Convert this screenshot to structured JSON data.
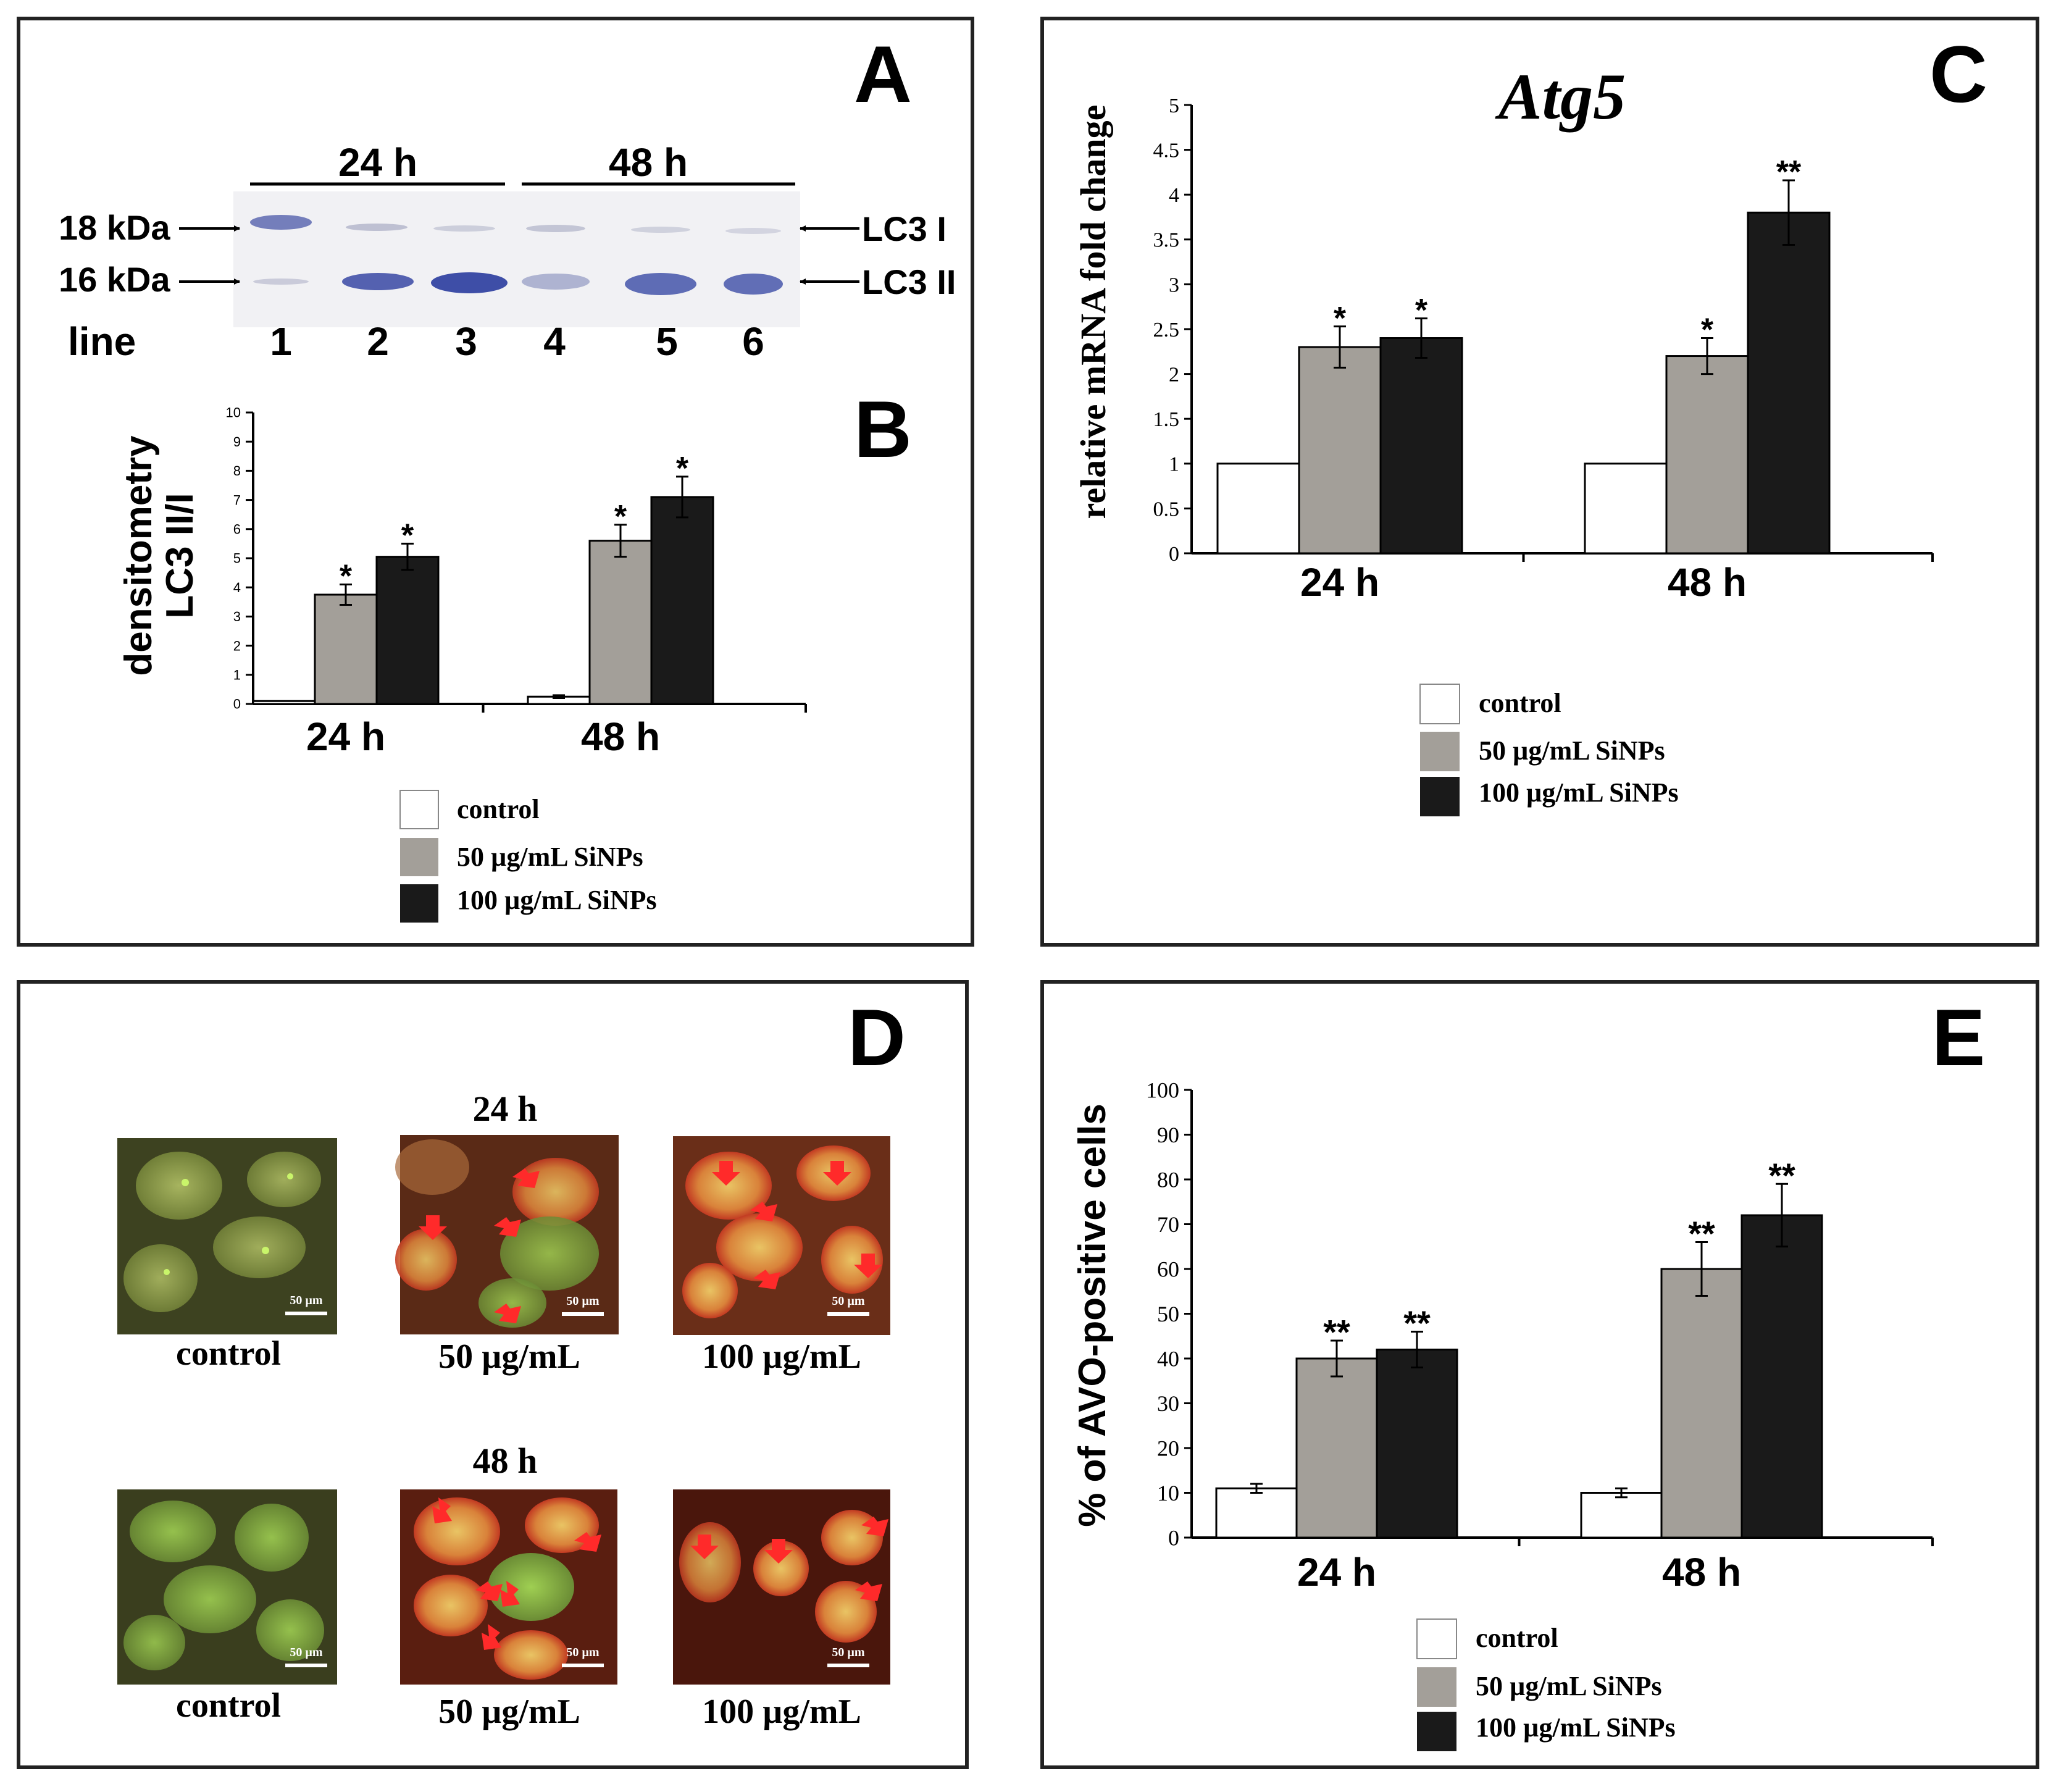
{
  "panels": {
    "A": {
      "letter": "A",
      "header_left": "24 h",
      "header_right": "48 h",
      "marker_18": "18 kDa",
      "marker_16": "16 kDa",
      "band_lc3i": "LC3 I",
      "band_lc3ii": "LC3 II",
      "lane_label": "line",
      "lanes": [
        "1",
        "2",
        "3",
        "4",
        "5",
        "6"
      ]
    },
    "B": {
      "letter": "B",
      "ylabel_line1": "densitometry",
      "ylabel_line2": "LC3 II/I"
    },
    "C": {
      "letter": "C",
      "title": "Atg5",
      "ylabel": "relative mRNA fold change"
    },
    "D": {
      "letter": "D",
      "row1_time": "24 h",
      "row2_time": "48 h",
      "captions": [
        "control",
        "50 µg/mL",
        "100 µg/mL"
      ],
      "scale_bar": "50 µm"
    },
    "E": {
      "letter": "E",
      "ylabel": "% of AVO-positive cells"
    }
  },
  "legend": [
    "control",
    "50 µg/mL SiNPs",
    "100 µg/mL SiNPs"
  ],
  "colors": {
    "control": "#ffffff",
    "low": "#a39f99",
    "high": "#1a1a1a",
    "blot_band": "#3f4fa8"
  },
  "chart_data": [
    {
      "id": "B",
      "type": "bar",
      "categories": [
        "24 h",
        "48 h"
      ],
      "series": [
        {
          "name": "control",
          "values": [
            0.1,
            0.25
          ],
          "errors": [
            0,
            0.05
          ],
          "sig": [
            "",
            ""
          ]
        },
        {
          "name": "50 µg/mL SiNPs",
          "values": [
            3.75,
            5.6
          ],
          "errors": [
            0.35,
            0.55
          ],
          "sig": [
            "*",
            "*"
          ]
        },
        {
          "name": "100 µg/mL SiNPs",
          "values": [
            5.05,
            7.1
          ],
          "errors": [
            0.45,
            0.7
          ],
          "sig": [
            "*",
            "*"
          ]
        }
      ],
      "yticks": [
        "0",
        "1",
        "2",
        "3",
        "4",
        "5",
        "6",
        "7",
        "8",
        "9",
        "10"
      ],
      "ylim": [
        0,
        10
      ],
      "ylabel": "densitometry LC3 II/I"
    },
    {
      "id": "C",
      "type": "bar",
      "categories": [
        "24 h",
        "48 h"
      ],
      "series": [
        {
          "name": "control",
          "values": [
            1,
            1
          ],
          "errors": [
            0,
            0
          ],
          "sig": [
            "",
            ""
          ]
        },
        {
          "name": "50 µg/mL SiNPs",
          "values": [
            2.3,
            2.2
          ],
          "errors": [
            0.23,
            0.2
          ],
          "sig": [
            "*",
            "*"
          ]
        },
        {
          "name": "100 µg/mL SiNPs",
          "values": [
            2.4,
            3.8
          ],
          "errors": [
            0.22,
            0.36
          ],
          "sig": [
            "*",
            "**"
          ]
        }
      ],
      "yticks": [
        "0",
        "0.5",
        "1",
        "1.5",
        "2",
        "2.5",
        "3",
        "3.5",
        "4",
        "4.5",
        "5"
      ],
      "ylim": [
        0,
        5
      ],
      "title": "Atg5",
      "ylabel": "relative mRNA fold change"
    },
    {
      "id": "E",
      "type": "bar",
      "categories": [
        "24 h",
        "48 h"
      ],
      "series": [
        {
          "name": "control",
          "values": [
            11,
            10
          ],
          "errors": [
            1,
            1
          ],
          "sig": [
            "",
            ""
          ]
        },
        {
          "name": "50 µg/mL SiNPs",
          "values": [
            40,
            60
          ],
          "errors": [
            4,
            6
          ],
          "sig": [
            "**",
            "**"
          ]
        },
        {
          "name": "100 µg/mL SiNPs",
          "values": [
            42,
            72
          ],
          "errors": [
            4,
            7
          ],
          "sig": [
            "**",
            "**"
          ]
        }
      ],
      "yticks": [
        "0",
        "10",
        "20",
        "30",
        "40",
        "50",
        "60",
        "70",
        "80",
        "90",
        "100"
      ],
      "ylim": [
        0,
        100
      ],
      "ylabel": "% of AVO-positive cells"
    }
  ]
}
